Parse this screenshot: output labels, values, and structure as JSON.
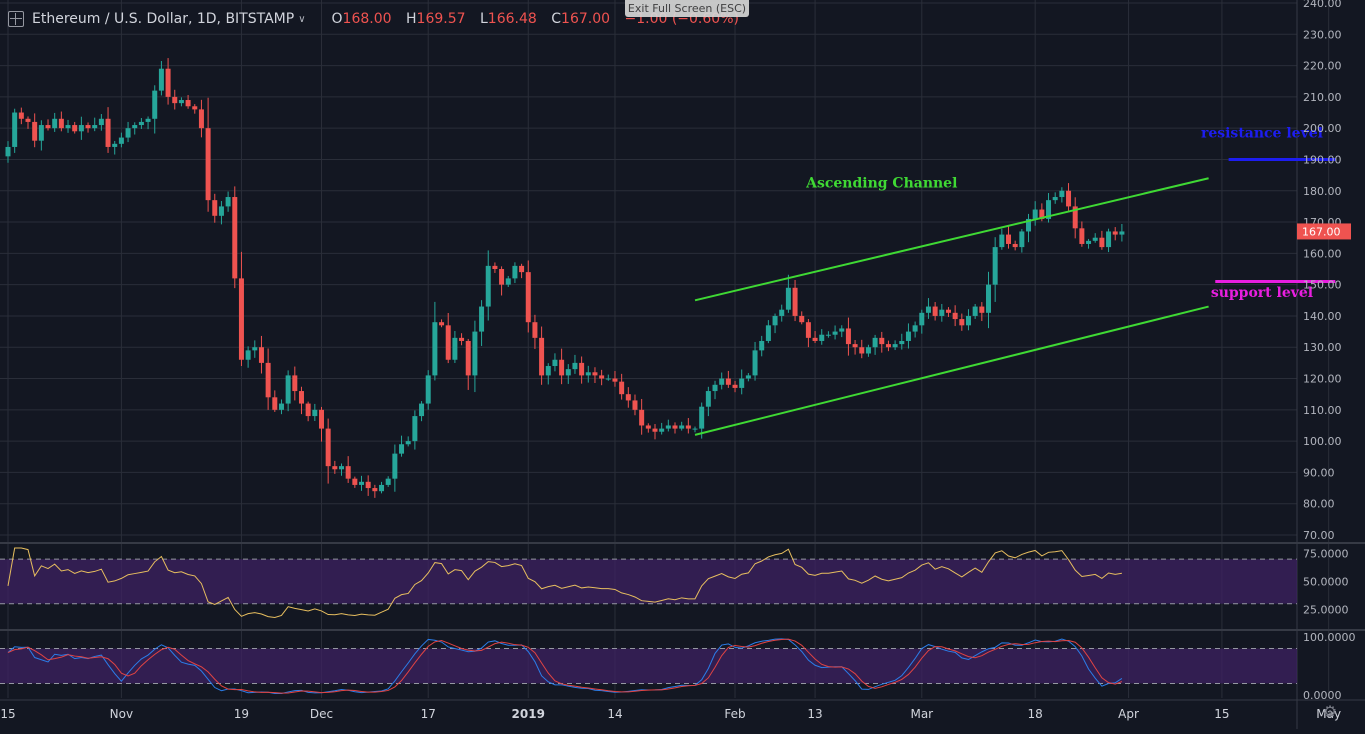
{
  "header": {
    "symbol": "Ethereum / U.S. Dollar, 1D, BITSTAMP",
    "open_label": "O",
    "open": "168.00",
    "high_label": "H",
    "high": "169.57",
    "low_label": "L",
    "low": "166.48",
    "close_label": "C",
    "close": "167.00",
    "change": "−1.00 (−0.60%)",
    "exit_fullscreen": "Exit Full Screen (ESC)"
  },
  "colors": {
    "up": "#26a69a",
    "down": "#ef5350",
    "channel": "#3fd934",
    "resistance": "#1d1df0",
    "support": "#e91ee0",
    "rsi_line": "#e7be5f",
    "stoch_k": "#2b7de9",
    "stoch_d": "#e04343",
    "panel_band": "#3d2262"
  },
  "chart_data": {
    "type": "candlestick",
    "price_axis": {
      "min": 70,
      "max": 240,
      "ticks": [
        "240.00",
        "230.00",
        "220.00",
        "210.00",
        "200.00",
        "190.00",
        "180.00",
        "170.00",
        "160.00",
        "150.00",
        "140.00",
        "130.00",
        "120.00",
        "110.00",
        "100.00",
        "90.00",
        "80.00",
        "70.00"
      ]
    },
    "last_price_label": "167.00",
    "x_labels": [
      {
        "label": "15",
        "day": 0
      },
      {
        "label": "Nov",
        "day": 17
      },
      {
        "label": "19",
        "day": 35
      },
      {
        "label": "Dec",
        "day": 47
      },
      {
        "label": "17",
        "day": 63
      },
      {
        "label": "2019",
        "day": 78
      },
      {
        "label": "14",
        "day": 91
      },
      {
        "label": "Feb",
        "day": 109
      },
      {
        "label": "13",
        "day": 121
      },
      {
        "label": "Mar",
        "day": 137
      },
      {
        "label": "18",
        "day": 154
      },
      {
        "label": "Apr",
        "day": 168
      },
      {
        "label": "15",
        "day": 182
      },
      {
        "label": "May",
        "day": 198
      }
    ],
    "closes": [
      194,
      205,
      203,
      202,
      196,
      201,
      200,
      203,
      200,
      201,
      199,
      201,
      200,
      201,
      203,
      194,
      195,
      197,
      200,
      201,
      202,
      203,
      212,
      219,
      210,
      208,
      209,
      207,
      206,
      200,
      177,
      172,
      175,
      178,
      152,
      126,
      129,
      130,
      125,
      114,
      110,
      112,
      121,
      116,
      112,
      108,
      110,
      104,
      92,
      91,
      92,
      88,
      86,
      87,
      85,
      84,
      86,
      88,
      96,
      99,
      100,
      108,
      112,
      121,
      138,
      137,
      126,
      133,
      132,
      121,
      135,
      143,
      156,
      155,
      150,
      152,
      156,
      154,
      138,
      133,
      121,
      124,
      126,
      121,
      123,
      125,
      121,
      122,
      121,
      120,
      120,
      119,
      115,
      113,
      110,
      105,
      104,
      103,
      104,
      105,
      104,
      105,
      104,
      104,
      111,
      116,
      118,
      120,
      118,
      117,
      120,
      121,
      129,
      132,
      137,
      140,
      142,
      149,
      140,
      138,
      133,
      132,
      134,
      134,
      135,
      136,
      131,
      130,
      128,
      130,
      133,
      131,
      130,
      131,
      132,
      135,
      137,
      141,
      143,
      140,
      142,
      141,
      139,
      137,
      140,
      143,
      141,
      150,
      162,
      166,
      163,
      162,
      167,
      171,
      174,
      171,
      177,
      178,
      180,
      175,
      168,
      163,
      164,
      165,
      162,
      167,
      166,
      167
    ],
    "annotations": [
      {
        "id": "ascending-channel",
        "text": "Ascending Channel",
        "color": "#3fd934",
        "price": 181,
        "day": 131
      },
      {
        "id": "resistance-level",
        "text": "resistance level",
        "color": "#1d1df0",
        "price": 197,
        "day": 188
      },
      {
        "id": "support-level",
        "text": "support level",
        "color": "#e91ee0",
        "price": 146,
        "day": 188
      }
    ],
    "channel_upper": {
      "from": {
        "day": 103,
        "price": 145
      },
      "to": {
        "day": 180,
        "price": 184
      }
    },
    "channel_lower": {
      "from": {
        "day": 103,
        "price": 102
      },
      "to": {
        "day": 180,
        "price": 143
      }
    },
    "resistance_line": {
      "from_day": 183,
      "to_day": 199,
      "price": 190
    },
    "support_line": {
      "from_day": 181,
      "to_day": 199,
      "price": 151
    },
    "rsi": {
      "ticks": [
        "75.0000",
        "50.0000",
        "25.0000"
      ],
      "min": 10,
      "max": 80,
      "upper_band": 70,
      "lower_band": 30
    },
    "stoch": {
      "ticks": [
        "100.0000",
        "0.0000"
      ],
      "min": -5,
      "max": 105,
      "upper_band": 80,
      "lower_band": 20
    }
  }
}
